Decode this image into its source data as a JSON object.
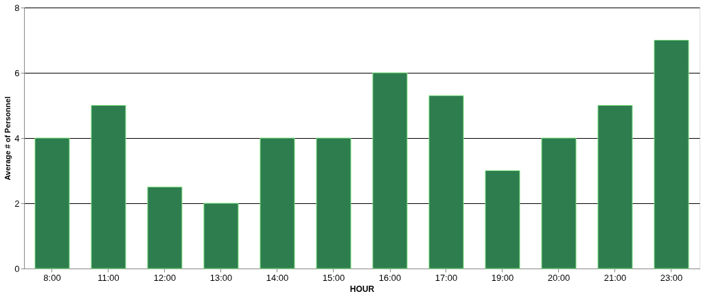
{
  "chart_data": {
    "type": "bar",
    "xlabel": "HOUR",
    "ylabel": "Average # of Personnel",
    "categories": [
      "8:00",
      "11:00",
      "12:00",
      "13:00",
      "14:00",
      "15:00",
      "16:00",
      "17:00",
      "19:00",
      "20:00",
      "21:00",
      "23:00"
    ],
    "values": [
      4,
      5,
      2.5,
      2,
      4,
      4,
      6,
      5.3,
      3,
      4,
      5,
      7
    ],
    "color": "#2e7d4f",
    "ylim": [
      0,
      8
    ],
    "yticks": [
      0,
      2,
      4,
      6,
      8
    ],
    "grid": "y"
  }
}
